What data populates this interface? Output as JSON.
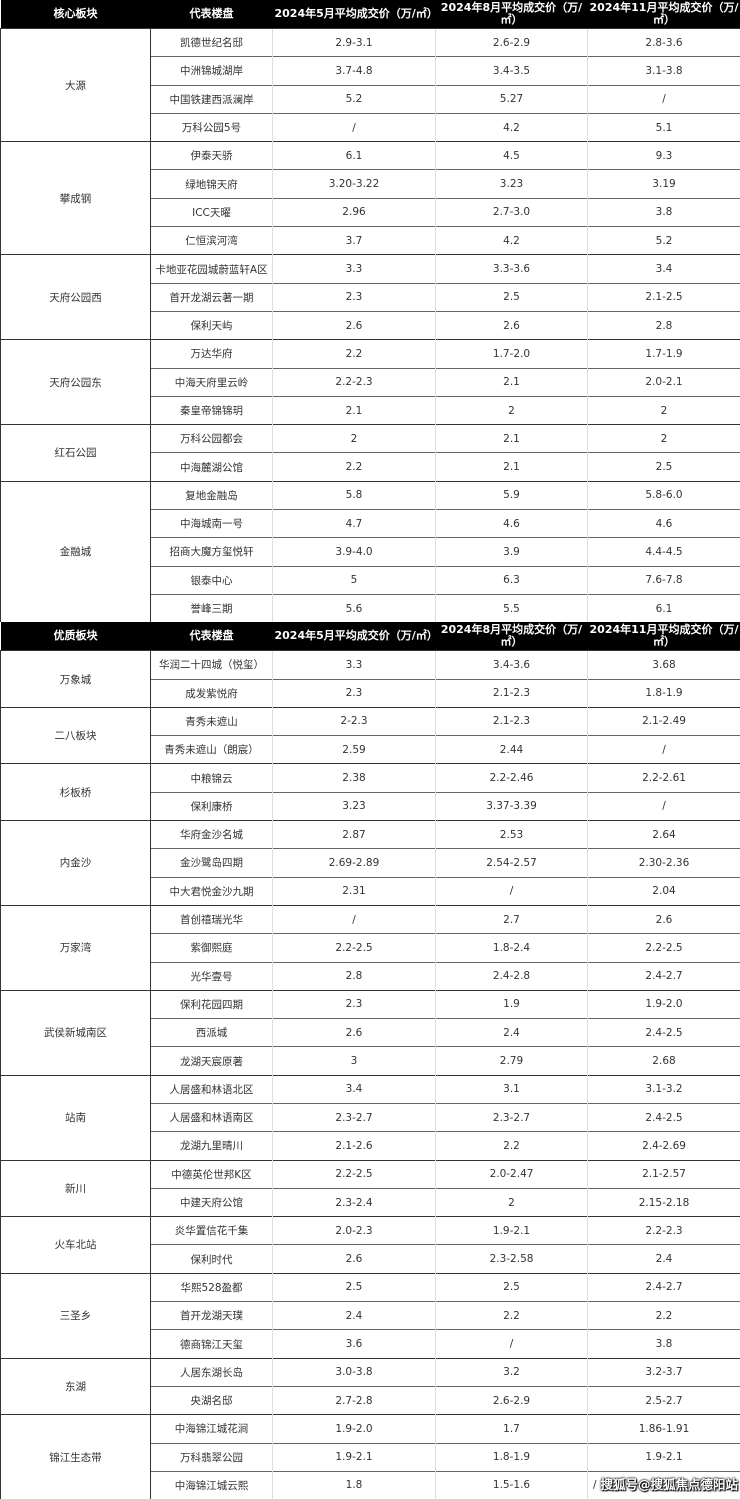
{
  "sections": [
    {
      "headers": [
        "核心板块",
        "代表楼盘",
        "2024年5月平均成交价（万/㎡）",
        "2024年8月平均成交价（万/㎡）",
        "2024年11月平均成交价（万/㎡）"
      ],
      "groups": [
        {
          "name": "大源",
          "rows": [
            [
              "凯德世纪名邸",
              "2.9-3.1",
              "2.6-2.9",
              "2.8-3.6"
            ],
            [
              "中洲锦城湖岸",
              "3.7-4.8",
              "3.4-3.5",
              "3.1-3.8"
            ],
            [
              "中国铁建西派澜岸",
              "5.2",
              "5.27",
              "/"
            ],
            [
              "万科公园5号",
              "/",
              "4.2",
              "5.1"
            ]
          ]
        },
        {
          "name": "攀成钢",
          "rows": [
            [
              "伊泰天骄",
              "6.1",
              "4.5",
              "9.3"
            ],
            [
              "绿地锦天府",
              "3.20-3.22",
              "3.23",
              "3.19"
            ],
            [
              "ICC天曜",
              "2.96",
              "2.7-3.0",
              "3.8"
            ],
            [
              "仁恒滨河湾",
              "3.7",
              "4.2",
              "5.2"
            ]
          ]
        },
        {
          "name": "天府公园西",
          "rows": [
            [
              "卡地亚花园城蔚蓝轩A区",
              "3.3",
              "3.3-3.6",
              "3.4"
            ],
            [
              "首开龙湖云著一期",
              "2.3",
              "2.5",
              "2.1-2.5"
            ],
            [
              "保利天屿",
              "2.6",
              "2.6",
              "2.8"
            ]
          ]
        },
        {
          "name": "天府公园东",
          "rows": [
            [
              "万达华府",
              "2.2",
              "1.7-2.0",
              "1.7-1.9"
            ],
            [
              "中海天府里云岭",
              "2.2-2.3",
              "2.1",
              "2.0-2.1"
            ],
            [
              "秦皇帝锦锦玥",
              "2.1",
              "2",
              "2"
            ]
          ]
        },
        {
          "name": "红石公园",
          "rows": [
            [
              "万科公园都会",
              "2",
              "2.1",
              "2"
            ],
            [
              "中海麓湖公馆",
              "2.2",
              "2.1",
              "2.5"
            ]
          ]
        },
        {
          "name": "金融城",
          "rows": [
            [
              "复地金融岛",
              "5.8",
              "5.9",
              "5.8-6.0"
            ],
            [
              "中海城南一号",
              "4.7",
              "4.6",
              "4.6"
            ],
            [
              "招商大魔方玺悦轩",
              "3.9-4.0",
              "3.9",
              "4.4-4.5"
            ],
            [
              "银泰中心",
              "5",
              "6.3",
              "7.6-7.8"
            ],
            [
              "誉峰三期",
              "5.6",
              "5.5",
              "6.1"
            ]
          ]
        }
      ]
    },
    {
      "headers": [
        "优质板块",
        "代表楼盘",
        "2024年5月平均成交价（万/㎡）",
        "2024年8月平均成交价（万/㎡）",
        "2024年11月平均成交价（万/㎡）"
      ],
      "groups": [
        {
          "name": "万象城",
          "rows": [
            [
              "华润二十四城（悦玺）",
              "3.3",
              "3.4-3.6",
              "3.68"
            ],
            [
              "成发紫悦府",
              "2.3",
              "2.1-2.3",
              "1.8-1.9"
            ]
          ]
        },
        {
          "name": "二八板块",
          "rows": [
            [
              "青秀未遮山",
              "2-2.3",
              "2.1-2.3",
              "2.1-2.49"
            ],
            [
              "青秀未遮山（朗宸）",
              "2.59",
              "2.44",
              "/"
            ]
          ]
        },
        {
          "name": "杉板桥",
          "rows": [
            [
              "中粮锦云",
              "2.38",
              "2.2-2.46",
              "2.2-2.61"
            ],
            [
              "保利康桥",
              "3.23",
              "3.37-3.39",
              "/"
            ]
          ]
        },
        {
          "name": "内金沙",
          "rows": [
            [
              "华府金沙名城",
              "2.87",
              "2.53",
              "2.64"
            ],
            [
              "金沙鹭岛四期",
              "2.69-2.89",
              "2.54-2.57",
              "2.30-2.36"
            ],
            [
              "中大君悦金沙九期",
              "2.31",
              "/",
              "2.04"
            ]
          ]
        },
        {
          "name": "万家湾",
          "rows": [
            [
              "首创禧瑞光华",
              "/",
              "2.7",
              "2.6"
            ],
            [
              "紫御熙庭",
              "2.2-2.5",
              "1.8-2.4",
              "2.2-2.5"
            ],
            [
              "光华壹号",
              "2.8",
              "2.4-2.8",
              "2.4-2.7"
            ]
          ]
        },
        {
          "name": "武侯新城南区",
          "rows": [
            [
              "保利花园四期",
              "2.3",
              "1.9",
              "1.9-2.0"
            ],
            [
              "西派城",
              "2.6",
              "2.4",
              "2.4-2.5"
            ],
            [
              "龙湖天宸原著",
              "3",
              "2.79",
              "2.68"
            ]
          ]
        },
        {
          "name": "站南",
          "rows": [
            [
              "人居盛和林语北区",
              "3.4",
              "3.1",
              "3.1-3.2"
            ],
            [
              "人居盛和林语南区",
              "2.3-2.7",
              "2.3-2.7",
              "2.4-2.5"
            ],
            [
              "龙湖九里晴川",
              "2.1-2.6",
              "2.2",
              "2.4-2.69"
            ]
          ]
        },
        {
          "name": "新川",
          "rows": [
            [
              "中德英伦世邦K区",
              "2.2-2.5",
              "2.0-2.47",
              "2.1-2.57"
            ],
            [
              "中建天府公馆",
              "2.3-2.4",
              "2",
              "2.15-2.18"
            ]
          ]
        },
        {
          "name": "火车北站",
          "rows": [
            [
              "炎华置信花千集",
              "2.0-2.3",
              "1.9-2.1",
              "2.2-2.3"
            ],
            [
              "保利时代",
              "2.6",
              "2.3-2.58",
              "2.4"
            ]
          ]
        },
        {
          "name": "三圣乡",
          "rows": [
            [
              "华熙528盈都",
              "2.5",
              "2.5",
              "2.4-2.7"
            ],
            [
              "首开龙湖天璞",
              "2.4",
              "2.2",
              "2.2"
            ],
            [
              "德商锦江天玺",
              "3.6",
              "/",
              "3.8"
            ]
          ]
        },
        {
          "name": "东湖",
          "rows": [
            [
              "人居东湖长岛",
              "3.0-3.8",
              "3.2",
              "3.2-3.7"
            ],
            [
              "央湖名邸",
              "2.7-2.8",
              "2.6-2.9",
              "2.5-2.7"
            ]
          ]
        },
        {
          "name": "锦江生态带",
          "rows": [
            [
              "中海锦江城花涧",
              "1.9-2.0",
              "1.7",
              "1.86-1.91"
            ],
            [
              "万科翡翠公园",
              "1.9-2.1",
              "1.8-1.9",
              "1.9-2.1"
            ],
            [
              "中海锦江城云熙",
              "1.8",
              "1.5-1.6",
              "/"
            ]
          ]
        }
      ]
    }
  ],
  "watermark": "搜狐号@搜狐焦点德阳站"
}
